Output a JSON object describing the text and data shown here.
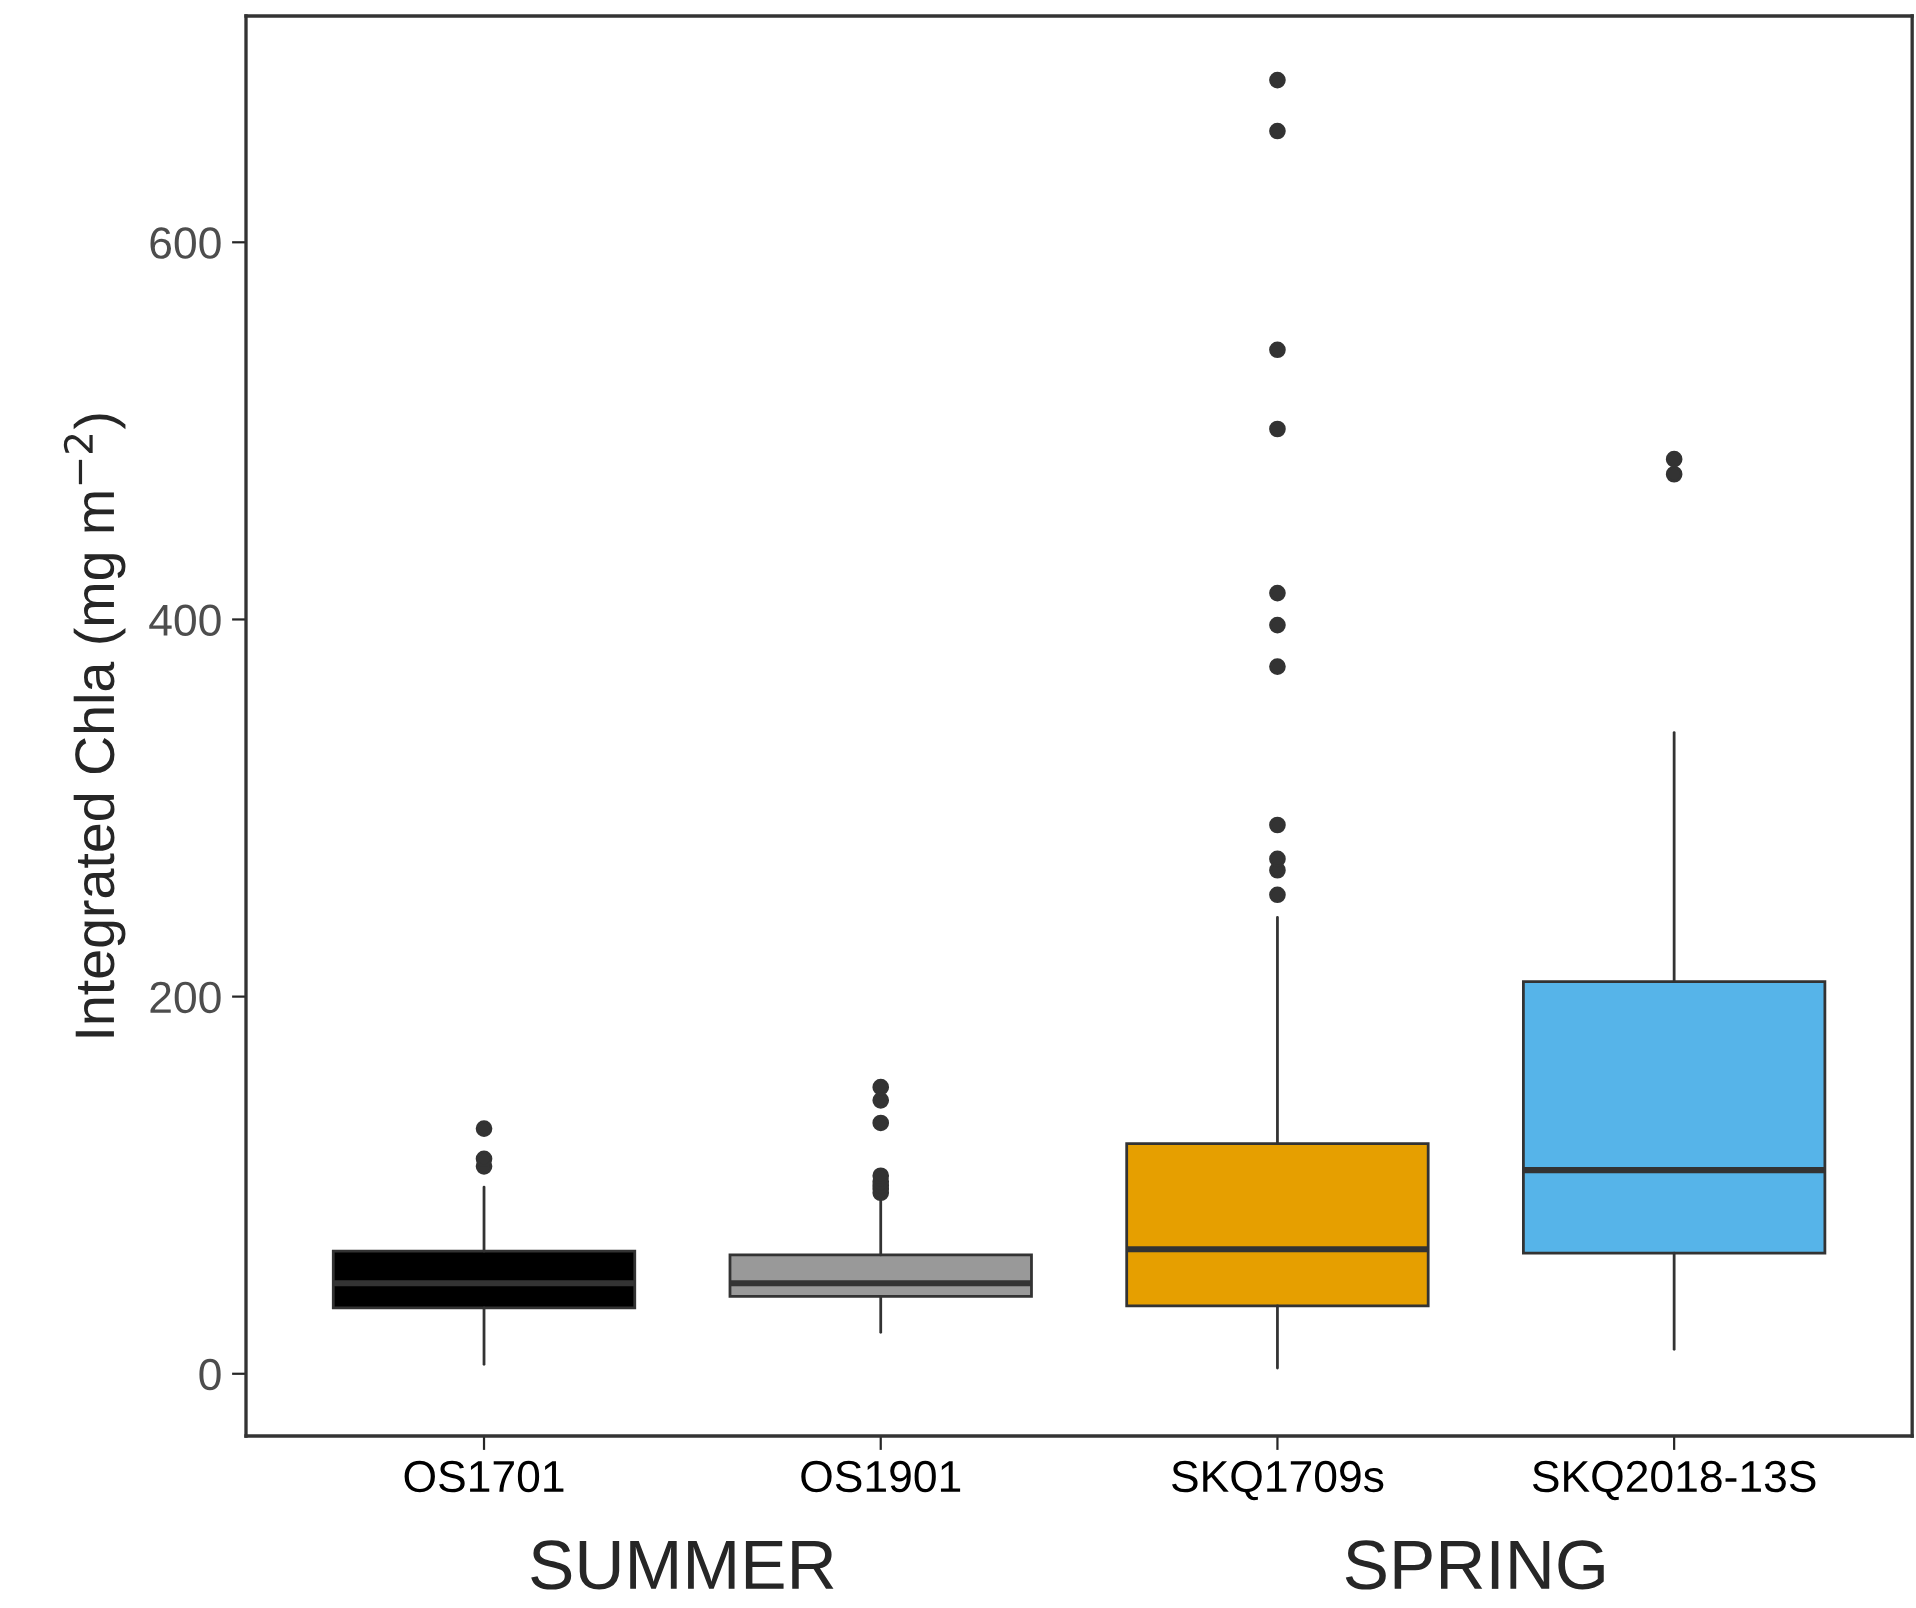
{
  "chart_data": {
    "type": "box",
    "ylabel": "Integrated Chla (mg m$^{−2}$)",
    "categories": [
      "OS1701",
      "OS1901",
      "SKQ1709s",
      "SKQ2018-13S"
    ],
    "colors": [
      "#000000",
      "#999999",
      "#e69f00",
      "#56b4e9"
    ],
    "boxes": [
      {
        "low": 5,
        "q1": 35,
        "median": 48,
        "q3": 65,
        "high": 99,
        "outliers": [
          110,
          114,
          130
        ]
      },
      {
        "low": 22,
        "q1": 41,
        "median": 48,
        "q3": 63,
        "high": 94,
        "outliers": [
          96,
          98,
          100,
          102,
          105,
          133,
          145,
          152
        ]
      },
      {
        "low": 3,
        "q1": 36,
        "median": 66,
        "q3": 122,
        "high": 242,
        "outliers": [
          254,
          267,
          273,
          291,
          375,
          397,
          414,
          501,
          543,
          659,
          686
        ]
      },
      {
        "low": 13,
        "q1": 64,
        "median": 108,
        "q3": 208,
        "high": 340,
        "outliers": [
          477,
          485
        ]
      }
    ],
    "ylim": [
      -33,
      720
    ],
    "yticks": [
      0,
      200,
      400,
      600
    ],
    "grid": false,
    "annotations": [
      "SUMMER",
      "SPRING"
    ]
  }
}
